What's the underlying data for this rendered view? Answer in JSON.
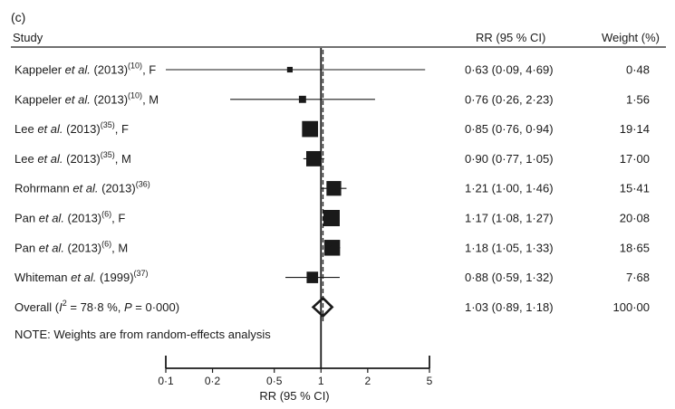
{
  "chart_data": {
    "type": "forest",
    "panel_label": "(c)",
    "headers": {
      "study": "Study",
      "rr": "RR (95 % CI)",
      "weight": "Weight (%)"
    },
    "studies": [
      {
        "author": "Kappeler ",
        "etal": "et al.",
        "rest": " (2013)",
        "ref": "(10)",
        "suffix": ", F",
        "rr": 0.63,
        "lo": 0.09,
        "hi": 4.69,
        "rr_text": "0·63 (0·09, 4·69)",
        "weight": 0.48,
        "weight_text": "0·48"
      },
      {
        "author": "Kappeler ",
        "etal": "et al.",
        "rest": " (2013)",
        "ref": "(10)",
        "suffix": ", M",
        "rr": 0.76,
        "lo": 0.26,
        "hi": 2.23,
        "rr_text": "0·76 (0·26, 2·23)",
        "weight": 1.56,
        "weight_text": "1·56"
      },
      {
        "author": "Lee ",
        "etal": "et al.",
        "rest": " (2013)",
        "ref": "(35)",
        "suffix": ", F",
        "rr": 0.85,
        "lo": 0.76,
        "hi": 0.94,
        "rr_text": "0·85 (0·76, 0·94)",
        "weight": 19.14,
        "weight_text": "19·14"
      },
      {
        "author": "Lee ",
        "etal": "et al.",
        "rest": " (2013)",
        "ref": "(35)",
        "suffix": ", M",
        "rr": 0.9,
        "lo": 0.77,
        "hi": 1.05,
        "rr_text": "0·90 (0·77, 1·05)",
        "weight": 17.0,
        "weight_text": "17·00"
      },
      {
        "author": "Rohrmann ",
        "etal": "et al.",
        "rest": " (2013)",
        "ref": "(36)",
        "suffix": "",
        "rr": 1.21,
        "lo": 1.0,
        "hi": 1.46,
        "rr_text": "1·21 (1·00, 1·46)",
        "weight": 15.41,
        "weight_text": "15·41"
      },
      {
        "author": "Pan ",
        "etal": "et al.",
        "rest": " (2013)",
        "ref": "(6)",
        "suffix": ", F",
        "rr": 1.17,
        "lo": 1.08,
        "hi": 1.27,
        "rr_text": "1·17 (1·08, 1·27)",
        "weight": 20.08,
        "weight_text": "20·08"
      },
      {
        "author": "Pan ",
        "etal": "et al.",
        "rest": " (2013)",
        "ref": "(6)",
        "suffix": ", M",
        "rr": 1.18,
        "lo": 1.05,
        "hi": 1.33,
        "rr_text": "1·18 (1·05, 1·33)",
        "weight": 18.65,
        "weight_text": "18·65"
      },
      {
        "author": "Whiteman ",
        "etal": "et al.",
        "rest": " (1999)",
        "ref": "(37)",
        "suffix": "",
        "rr": 0.88,
        "lo": 0.59,
        "hi": 1.32,
        "rr_text": "0·88 (0·59, 1·32)",
        "weight": 7.68,
        "weight_text": "7·68"
      }
    ],
    "overall": {
      "prefix": "Overall (",
      "i_letter": "I",
      "sup": "2",
      "middle": " = 78·8 %, ",
      "p_letter": "P",
      "end": " = 0·000)",
      "rr": 1.03,
      "lo": 0.89,
      "hi": 1.18,
      "rr_text": "1·03 (0·89, 1·18)",
      "weight_text": "100·00"
    },
    "note": "NOTE: Weights are from random-effects analysis",
    "x_axis": {
      "scale": "log",
      "ticks": [
        0.1,
        0.2,
        0.5,
        1,
        2,
        5
      ],
      "tick_labels": [
        "0·1",
        "0·2",
        "0·5",
        "1",
        "2",
        "5"
      ],
      "label": "RR (95 % CI)",
      "range": [
        0.1,
        5
      ]
    },
    "null_line": 1
  }
}
